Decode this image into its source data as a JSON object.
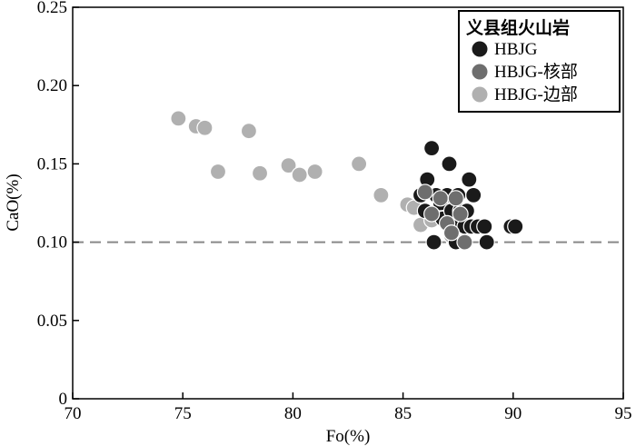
{
  "chart_data": {
    "type": "scatter",
    "xlabel": "Fo(%)",
    "ylabel": "CaO(%)",
    "xlim": [
      70,
      95
    ],
    "ylim": [
      0,
      0.25
    ],
    "x_ticks": [
      "70",
      "75",
      "80",
      "85",
      "90",
      "95"
    ],
    "y_ticks": [
      "0",
      "0.05",
      "0.10",
      "0.15",
      "0.20",
      "0.25"
    ],
    "grid": false,
    "legend": {
      "title": "义县组火山岩",
      "placement": "top-right"
    },
    "reference_line": {
      "y": 0.1,
      "style": "dashed",
      "color": "#888888"
    },
    "series": [
      {
        "name": "HBJG-边部",
        "color": "#b0b0b0",
        "points": [
          {
            "x": 74.8,
            "y": 0.179
          },
          {
            "x": 75.6,
            "y": 0.174
          },
          {
            "x": 76.0,
            "y": 0.173
          },
          {
            "x": 76.6,
            "y": 0.145
          },
          {
            "x": 78.0,
            "y": 0.171
          },
          {
            "x": 78.5,
            "y": 0.144
          },
          {
            "x": 79.8,
            "y": 0.149
          },
          {
            "x": 80.3,
            "y": 0.143
          },
          {
            "x": 81.0,
            "y": 0.145
          },
          {
            "x": 83.0,
            "y": 0.15
          },
          {
            "x": 84.0,
            "y": 0.13
          },
          {
            "x": 85.2,
            "y": 0.124
          },
          {
            "x": 85.5,
            "y": 0.122
          },
          {
            "x": 85.8,
            "y": 0.111
          },
          {
            "x": 86.3,
            "y": 0.114
          },
          {
            "x": 86.7,
            "y": 0.123
          },
          {
            "x": 87.2,
            "y": 0.104
          }
        ]
      },
      {
        "name": "HBJG",
        "color": "#1a1a1a",
        "points": [
          {
            "x": 85.8,
            "y": 0.13
          },
          {
            "x": 86.0,
            "y": 0.12
          },
          {
            "x": 86.1,
            "y": 0.14
          },
          {
            "x": 86.3,
            "y": 0.16
          },
          {
            "x": 86.4,
            "y": 0.1
          },
          {
            "x": 86.5,
            "y": 0.13
          },
          {
            "x": 86.7,
            "y": 0.125
          },
          {
            "x": 86.8,
            "y": 0.115
          },
          {
            "x": 87.0,
            "y": 0.13
          },
          {
            "x": 87.1,
            "y": 0.15
          },
          {
            "x": 87.2,
            "y": 0.12
          },
          {
            "x": 87.3,
            "y": 0.11
          },
          {
            "x": 87.4,
            "y": 0.1
          },
          {
            "x": 87.5,
            "y": 0.13
          },
          {
            "x": 87.6,
            "y": 0.12
          },
          {
            "x": 87.8,
            "y": 0.11
          },
          {
            "x": 87.9,
            "y": 0.12
          },
          {
            "x": 88.0,
            "y": 0.14
          },
          {
            "x": 88.1,
            "y": 0.11
          },
          {
            "x": 88.2,
            "y": 0.13
          },
          {
            "x": 88.4,
            "y": 0.11
          },
          {
            "x": 88.7,
            "y": 0.11
          },
          {
            "x": 88.8,
            "y": 0.1
          },
          {
            "x": 89.9,
            "y": 0.11
          },
          {
            "x": 90.1,
            "y": 0.11
          }
        ]
      },
      {
        "name": "HBJG-核部",
        "color": "#6e6e6e",
        "points": [
          {
            "x": 86.0,
            "y": 0.132
          },
          {
            "x": 86.3,
            "y": 0.118
          },
          {
            "x": 86.7,
            "y": 0.128
          },
          {
            "x": 87.0,
            "y": 0.112
          },
          {
            "x": 87.2,
            "y": 0.106
          },
          {
            "x": 87.4,
            "y": 0.128
          },
          {
            "x": 87.8,
            "y": 0.1
          },
          {
            "x": 87.6,
            "y": 0.118
          }
        ]
      }
    ],
    "legend_order": [
      "HBJG",
      "HBJG-核部",
      "HBJG-边部"
    ]
  }
}
